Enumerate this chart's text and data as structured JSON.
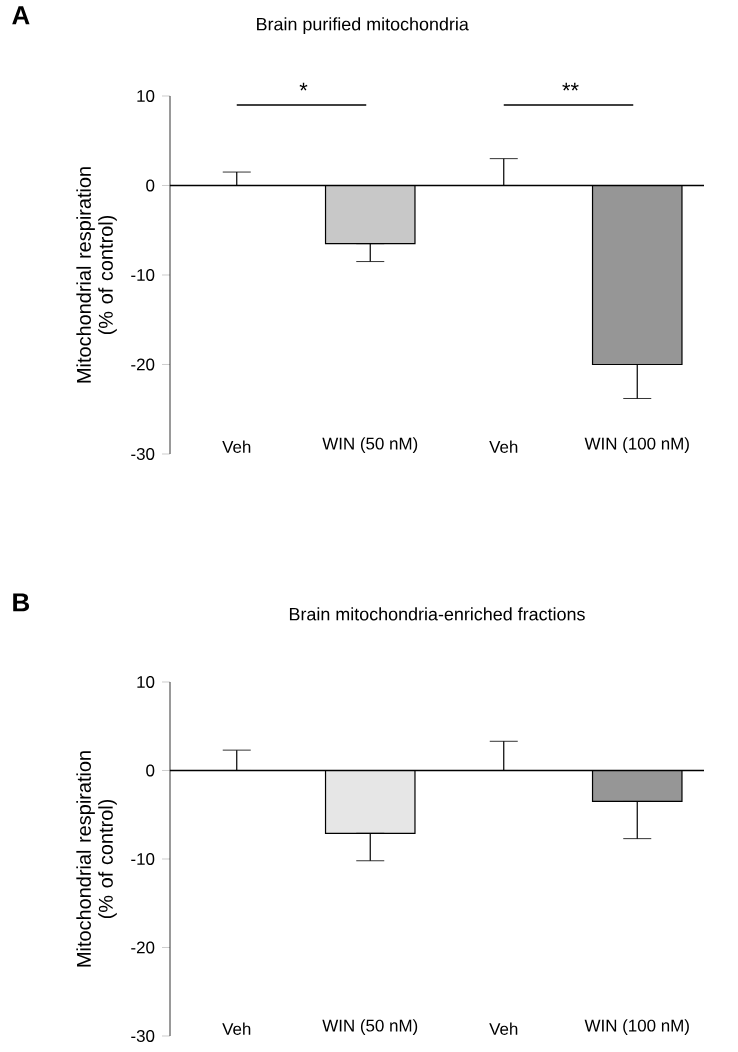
{
  "chart_data": [
    {
      "type": "bar",
      "title": "Brain purified mitochondria",
      "ylabel": "Mitochondrial respiration (% of control)",
      "categories": [
        "Veh",
        "WIN (50 nM)",
        "Veh",
        "WIN (100 nM)"
      ],
      "values": [
        0,
        -6.5,
        0,
        -20
      ],
      "errors": [
        [
          0,
          1.5
        ],
        [
          -8.5,
          -6.5
        ],
        [
          0,
          3
        ],
        [
          -23.8,
          -20
        ]
      ],
      "colors": [
        "#ffffff",
        "#c8c8c8",
        "#ffffff",
        "#969696"
      ],
      "ylim": [
        -30,
        10
      ],
      "yticks": [
        -30,
        -20,
        -10,
        0,
        10
      ],
      "ref_lines": [
        {
          "axis": "y",
          "value": 0,
          "color": "#000000"
        }
      ],
      "annotations": [
        "A",
        "*",
        "**"
      ]
    },
    {
      "type": "bar",
      "title": "Brain mitochondria-enriched fractions",
      "ylabel": "Mitochondrial respiration (% of control)",
      "categories": [
        "Veh",
        "WIN (50 nM)",
        "Veh",
        "WIN (100 nM)"
      ],
      "values": [
        0,
        -7.1,
        0,
        -3.5
      ],
      "errors": [
        [
          0,
          2.3
        ],
        [
          -10.2,
          -7.1
        ],
        [
          0,
          3.3
        ],
        [
          -7.7,
          -3.5
        ]
      ],
      "colors": [
        "#ffffff",
        "#e6e6e6",
        "#ffffff",
        "#969696"
      ],
      "ylim": [
        -30,
        10
      ],
      "yticks": [
        -30,
        -20,
        -10,
        0,
        10
      ],
      "ref_lines": [
        {
          "axis": "y",
          "value": 0,
          "color": "#000000"
        }
      ],
      "annotations": [
        "B"
      ]
    }
  ]
}
